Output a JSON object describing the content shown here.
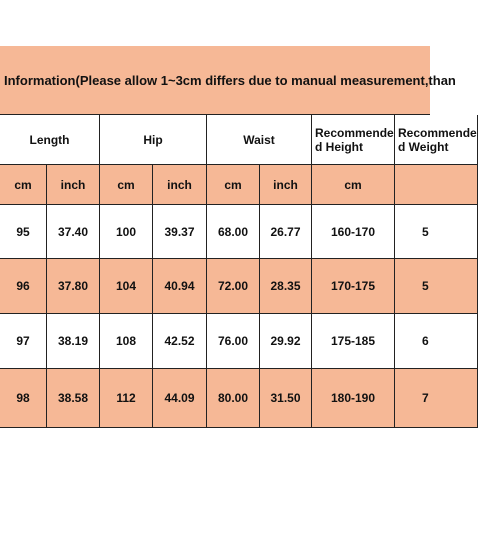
{
  "title": "Information(Please allow 1~3cm differs due to manual measurement,than",
  "table": {
    "headers": [
      "Length",
      "Hip",
      "Waist",
      "Recommende d Height",
      "Recommende d Weight"
    ],
    "units": [
      "cm",
      "inch",
      "cm",
      "inch",
      "cm",
      "inch",
      "cm"
    ],
    "rows": [
      [
        "95",
        "37.40",
        "100",
        "39.37",
        "68.00",
        "26.77",
        "160-170",
        "5"
      ],
      [
        "96",
        "37.80",
        "104",
        "40.94",
        "72.00",
        "28.35",
        "170-175",
        "5"
      ],
      [
        "97",
        "38.19",
        "108",
        "42.52",
        "76.00",
        "29.92",
        "175-185",
        "6"
      ],
      [
        "98",
        "38.58",
        "112",
        "44.09",
        "80.00",
        "31.50",
        "180-190",
        "7"
      ]
    ]
  }
}
